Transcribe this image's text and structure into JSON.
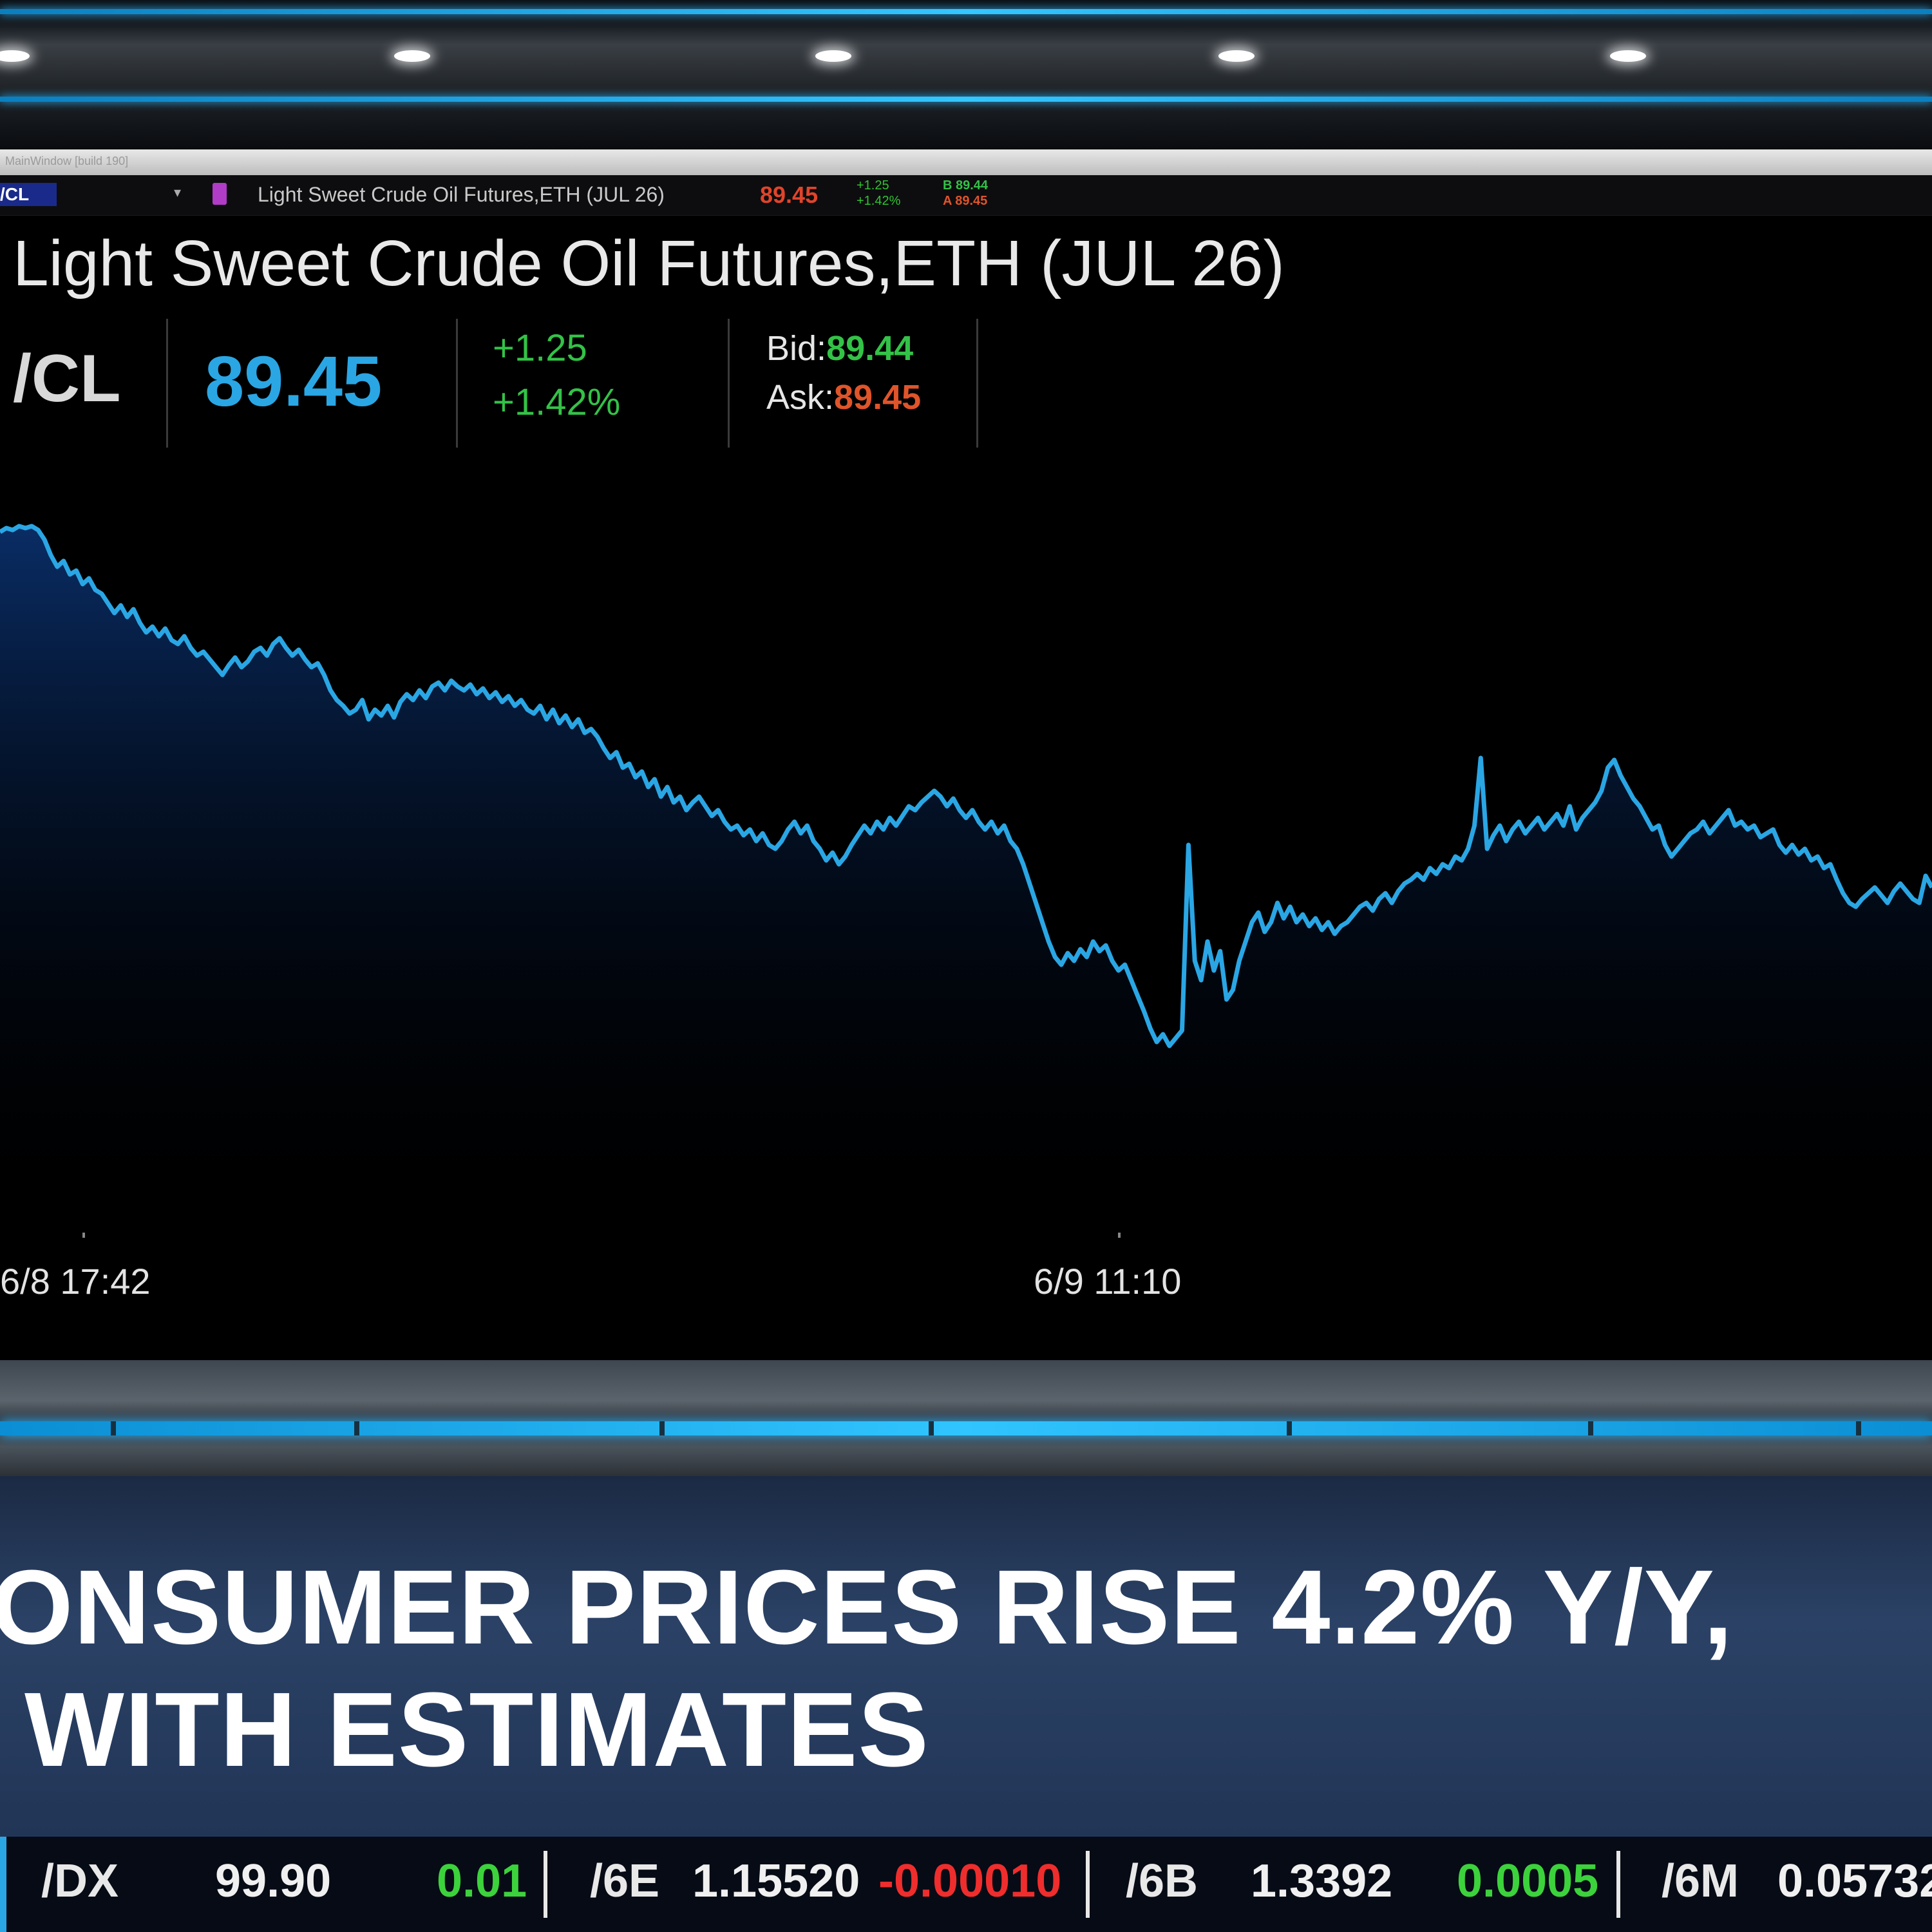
{
  "window": {
    "title": "MainWindow [build 190]"
  },
  "toolbar": {
    "symbol": "/CL",
    "description": "Light Sweet Crude Oil Futures,ETH (JUL 26)",
    "last": "89.45",
    "change": "+1.25",
    "change_pct": "+1.42%",
    "bid": "B 89.44",
    "ask": "A 89.45"
  },
  "quote": {
    "title": "Light Sweet Crude Oil Futures,ETH (JUL 26)",
    "symbol": "/CL",
    "last": "89.45",
    "change": "+1.25",
    "change_pct": "+1.42%",
    "bid_label": "Bid:",
    "bid": "89.44",
    "ask_label": "Ask:",
    "ask": "89.45"
  },
  "chart_data": {
    "type": "area",
    "x_tick_labels": [
      "6/8 17:42",
      "6/9 11:10"
    ],
    "line_color": "#2aa6e4",
    "grid": false,
    "series": [
      {
        "values": [
          0.18,
          0.16,
          0.17,
          0.15,
          0.16,
          0.15,
          0.17,
          0.22,
          0.3,
          0.36,
          0.33,
          0.4,
          0.38,
          0.45,
          0.42,
          0.48,
          0.5,
          0.55,
          0.6,
          0.56,
          0.62,
          0.58,
          0.65,
          0.7,
          0.67,
          0.72,
          0.68,
          0.74,
          0.76,
          0.72,
          0.78,
          0.82,
          0.8,
          0.84,
          0.88,
          0.92,
          0.87,
          0.83,
          0.88,
          0.85,
          0.8,
          0.78,
          0.82,
          0.76,
          0.73,
          0.78,
          0.82,
          0.79,
          0.84,
          0.88,
          0.86,
          0.92,
          1.0,
          1.05,
          1.08,
          1.12,
          1.1,
          1.05,
          1.15,
          1.1,
          1.13,
          1.08,
          1.14,
          1.06,
          1.02,
          1.05,
          1.0,
          1.04,
          0.98,
          0.96,
          1.0,
          0.95,
          0.98,
          1.0,
          0.97,
          1.02,
          0.99,
          1.04,
          1.01,
          1.06,
          1.03,
          1.08,
          1.05,
          1.1,
          1.12,
          1.08,
          1.15,
          1.1,
          1.17,
          1.13,
          1.19,
          1.15,
          1.22,
          1.2,
          1.24,
          1.3,
          1.35,
          1.32,
          1.4,
          1.38,
          1.45,
          1.42,
          1.5,
          1.46,
          1.55,
          1.5,
          1.58,
          1.55,
          1.62,
          1.58,
          1.55,
          1.6,
          1.65,
          1.62,
          1.68,
          1.72,
          1.7,
          1.75,
          1.72,
          1.78,
          1.74,
          1.8,
          1.82,
          1.78,
          1.72,
          1.68,
          1.74,
          1.7,
          1.78,
          1.82,
          1.88,
          1.84,
          1.9,
          1.86,
          1.8,
          1.75,
          1.7,
          1.74,
          1.68,
          1.72,
          1.66,
          1.7,
          1.65,
          1.6,
          1.62,
          1.58,
          1.55,
          1.52,
          1.55,
          1.6,
          1.56,
          1.62,
          1.66,
          1.62,
          1.68,
          1.72,
          1.68,
          1.74,
          1.7,
          1.78,
          1.82,
          1.9,
          2.0,
          2.1,
          2.2,
          2.3,
          2.38,
          2.42,
          2.36,
          2.4,
          2.34,
          2.38,
          2.3,
          2.35,
          2.32,
          2.4,
          2.45,
          2.42,
          2.5,
          2.58,
          2.66,
          2.75,
          2.82,
          2.78,
          2.84,
          2.8,
          2.76,
          1.8,
          2.4,
          2.5,
          2.3,
          2.45,
          2.35,
          2.6,
          2.55,
          2.4,
          2.3,
          2.2,
          2.15,
          2.25,
          2.2,
          2.1,
          2.18,
          2.12,
          2.2,
          2.16,
          2.22,
          2.18,
          2.24,
          2.2,
          2.26,
          2.22,
          2.2,
          2.16,
          2.12,
          2.1,
          2.14,
          2.08,
          2.05,
          2.1,
          2.04,
          2.0,
          1.98,
          1.95,
          1.98,
          1.92,
          1.95,
          1.9,
          1.92,
          1.86,
          1.88,
          1.82,
          1.7,
          1.35,
          1.82,
          1.75,
          1.7,
          1.78,
          1.72,
          1.68,
          1.74,
          1.7,
          1.66,
          1.72,
          1.68,
          1.64,
          1.7,
          1.6,
          1.72,
          1.66,
          1.62,
          1.58,
          1.52,
          1.4,
          1.36,
          1.44,
          1.5,
          1.56,
          1.6,
          1.66,
          1.72,
          1.7,
          1.8,
          1.86,
          1.82,
          1.78,
          1.74,
          1.72,
          1.68,
          1.74,
          1.7,
          1.66,
          1.62,
          1.7,
          1.68,
          1.72,
          1.7,
          1.76,
          1.74,
          1.72,
          1.8,
          1.84,
          1.8,
          1.85,
          1.82,
          1.88,
          1.86,
          1.92,
          1.9,
          1.98,
          2.05,
          2.1,
          2.12,
          2.08,
          2.05,
          2.02,
          2.06,
          2.1,
          2.04,
          2.0,
          2.04,
          2.08,
          2.1,
          1.96,
          2.02
        ]
      }
    ]
  },
  "headline": {
    "line1": "ONSUMER PRICES RISE 4.2% Y/Y,",
    "line2": "WITH ESTIMATES"
  },
  "ticker": [
    {
      "symbol": "/DX",
      "price": "99.90",
      "change": "0.01",
      "direction": "up"
    },
    {
      "symbol": "/6E",
      "price": "1.15520",
      "change": "-0.00010",
      "direction": "down"
    },
    {
      "symbol": "/6B",
      "price": "1.3392",
      "change": "0.0005",
      "direction": "up"
    },
    {
      "symbol": "/6M",
      "price": "0.05732",
      "change": "",
      "direction": ""
    }
  ]
}
